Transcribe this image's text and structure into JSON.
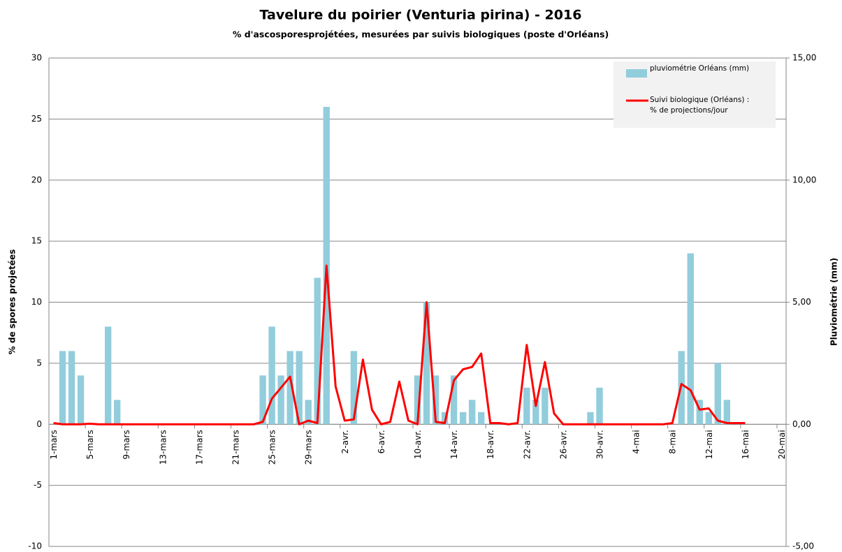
{
  "chart_data": {
    "type": "bar-line",
    "title": "Tavelure du poirier (Venturia pirina) - 2016",
    "subtitle": "% d'ascosporesprojétées, mesurées par suivis biologiques (poste d'Orléans)",
    "y_label": "% de spores projetées",
    "y2_label": "Pluviométrie (mm)",
    "categories": [
      "1-mars",
      null,
      null,
      null,
      "5-mars",
      null,
      null,
      null,
      "9-mars",
      null,
      null,
      null,
      "13-mars",
      null,
      null,
      null,
      "17-mars",
      null,
      null,
      null,
      "21-mars",
      null,
      null,
      null,
      "25-mars",
      null,
      null,
      null,
      "29-mars",
      null,
      null,
      null,
      "2-avr.",
      null,
      null,
      null,
      "6-avr.",
      null,
      null,
      null,
      "10-avr.",
      null,
      null,
      null,
      "14-avr.",
      null,
      null,
      null,
      "18-avr.",
      null,
      null,
      null,
      "22-avr.",
      null,
      null,
      null,
      "26-avr.",
      null,
      null,
      null,
      "30-avr.",
      null,
      null,
      null,
      "4-mai",
      null,
      null,
      null,
      "8-mai",
      null,
      null,
      null,
      "12-mai",
      null,
      null,
      null,
      "16-mai",
      null,
      null,
      null,
      "20-mai"
    ],
    "series": [
      {
        "name": "pluviométrie Orléans (mm)",
        "type": "bar",
        "axis": "y2",
        "color": "#92cddc",
        "values": [
          0,
          3.0,
          3.0,
          2.0,
          0,
          0,
          4.0,
          1.0,
          0,
          0,
          0,
          0,
          0,
          0,
          0,
          0,
          0,
          0,
          0,
          0,
          0,
          0,
          0,
          2.0,
          4.0,
          2.0,
          3.0,
          3.0,
          1.0,
          6.0,
          13.0,
          0,
          0,
          3.0,
          0,
          0,
          0,
          0,
          0,
          0,
          2.0,
          5.0,
          2.0,
          0.5,
          2.0,
          0.5,
          1.0,
          0.5,
          0,
          0,
          0,
          0,
          1.5,
          1.0,
          1.5,
          0,
          0,
          0,
          0,
          0.5,
          1.5,
          0,
          0,
          0,
          0,
          0,
          0,
          0,
          0,
          3.0,
          7.0,
          1.0,
          0.5,
          2.5,
          1.0,
          0,
          0,
          0,
          0,
          0,
          0
        ]
      },
      {
        "name": "Suivi biologique (Orléans) : % de projections/jour",
        "type": "line",
        "axis": "y",
        "color": "#ff0000",
        "values": [
          0.1,
          0,
          0,
          0,
          0.05,
          0,
          0,
          0,
          0,
          0,
          0,
          0,
          0,
          0,
          0,
          0,
          0,
          0,
          0,
          0,
          0,
          0,
          0,
          0.2,
          2.1,
          3.0,
          3.9,
          0,
          0.3,
          0.1,
          13,
          3.1,
          0.3,
          0.4,
          5.3,
          1.2,
          0,
          0.2,
          3.5,
          0.3,
          0,
          10,
          0.2,
          0.1,
          3.6,
          4.5,
          4.7,
          5.8,
          0.1,
          0.1,
          0,
          0.1,
          6.5,
          1.5,
          5.1,
          0.9,
          0,
          0,
          0,
          0,
          0,
          0,
          0,
          0,
          0,
          0,
          0,
          0,
          0.1,
          3.3,
          2.8,
          1.2,
          1.3,
          0.3,
          0.1,
          0.1,
          0.1,
          null,
          null,
          null,
          null
        ]
      }
    ],
    "ylim": [
      -10,
      30
    ],
    "yticks": [
      -10,
      -5,
      0,
      5,
      10,
      15,
      20,
      25,
      30
    ],
    "y2lim": [
      -5,
      15
    ],
    "y2ticks": [
      {
        "value": -5,
        "label": "-5,00"
      },
      {
        "value": 0,
        "label": "0,00"
      },
      {
        "value": 5,
        "label": "5,00"
      },
      {
        "value": 10,
        "label": "10,00"
      },
      {
        "value": 15,
        "label": "15,00"
      }
    ],
    "grid": true,
    "legend": "top-right"
  }
}
